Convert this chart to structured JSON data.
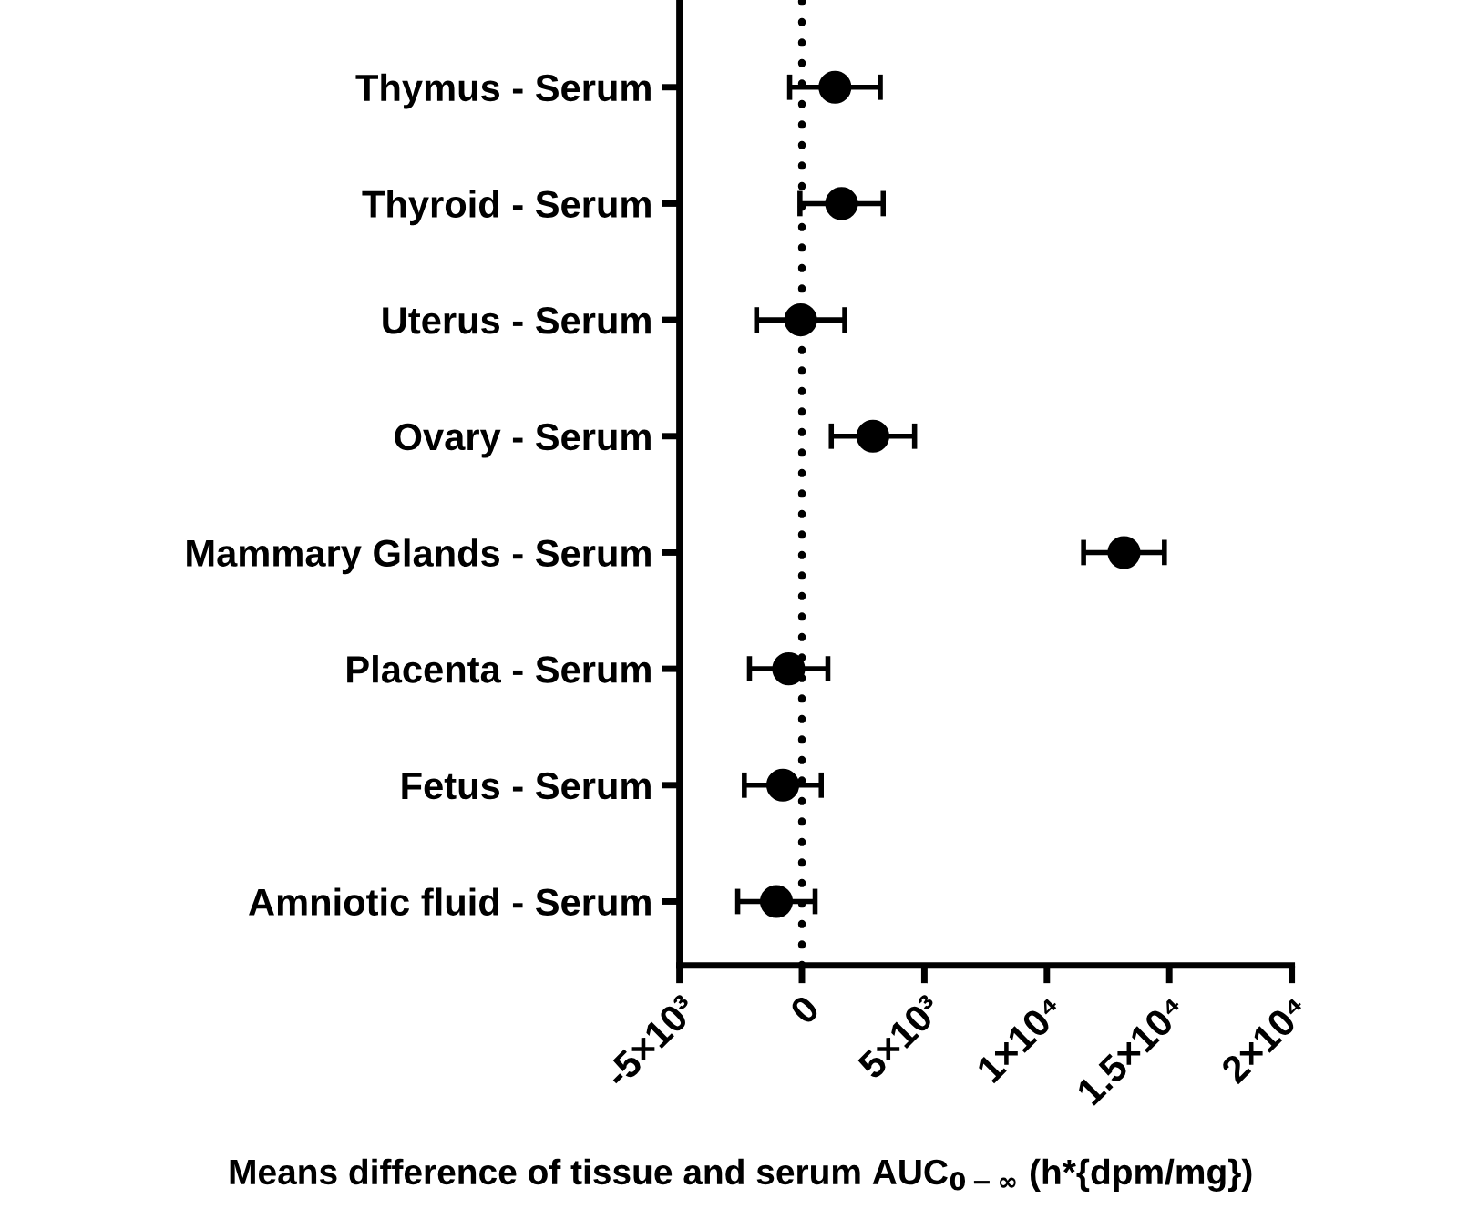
{
  "chart_data": {
    "type": "scatter",
    "orientation": "horizontal",
    "categories": [
      "Thymus - Serum",
      "Thyroid - Serum",
      "Uterus - Serum",
      "Ovary - Serum",
      "Mammary Glands - Serum",
      "Placenta - Serum",
      "Fetus - Serum",
      "Amniotic fluid - Serum"
    ],
    "series": [
      {
        "color": "#000000",
        "values": [
          1350,
          1620,
          -50,
          2900,
          13150,
          -540,
          -780,
          -1040
        ],
        "errors": [
          1850,
          1700,
          1800,
          1700,
          1650,
          1600,
          1570,
          1580
        ]
      }
    ],
    "marker": "circle",
    "xlabel": "Means difference of tissue and serum AUC$_{0−∞}$ (h*{dpm/mg})",
    "xlim": [
      -5000,
      20000
    ],
    "xticks": [
      {
        "value": -5000,
        "label": "-5×10³"
      },
      0,
      {
        "value": 5000,
        "label": "5×10³"
      },
      {
        "value": 10000,
        "label": "1×10⁴"
      },
      {
        "value": 15000,
        "label": "1.5×10⁴"
      },
      {
        "value": 20000,
        "label": "2×10⁴"
      }
    ],
    "ref_lines": [
      {
        "axis": "x",
        "value": 0,
        "line_style": "dotted",
        "color": "#000000"
      }
    ],
    "grid": false,
    "legend": false
  }
}
